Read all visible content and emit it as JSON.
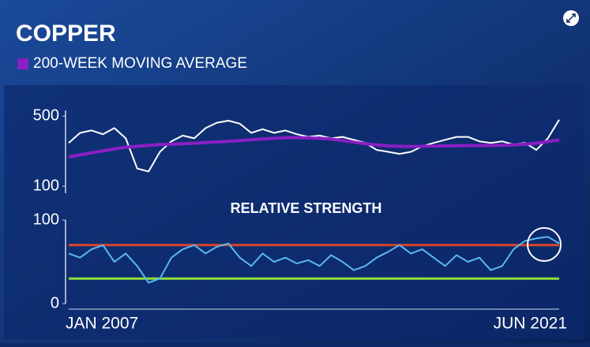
{
  "header": {
    "title": "COPPER",
    "subtitle": "200-WEEK MOVING AVERAGE"
  },
  "chart_data": [
    {
      "type": "line",
      "log_scale": true,
      "ylim": [
        85,
        570
      ],
      "yticks": [
        100,
        500
      ],
      "categories": [
        "JAN 2007",
        null,
        null,
        null,
        null,
        null,
        null,
        null,
        null,
        null,
        null,
        null,
        null,
        null,
        null,
        null,
        null,
        null,
        null,
        null,
        null,
        null,
        null,
        null,
        null,
        null,
        null,
        null,
        null,
        null,
        null,
        null,
        null,
        null,
        null,
        null,
        null,
        null,
        null,
        null,
        null,
        null,
        null,
        "JUN 2021"
      ],
      "series": [
        {
          "color": "#ffffff",
          "values": [
            270,
            340,
            360,
            330,
            380,
            300,
            150,
            140,
            220,
            280,
            320,
            300,
            380,
            430,
            450,
            420,
            340,
            370,
            340,
            360,
            330,
            310,
            320,
            300,
            310,
            290,
            270,
            230,
            220,
            210,
            220,
            250,
            270,
            290,
            310,
            310,
            280,
            270,
            280,
            260,
            270,
            230,
            300,
            460
          ]
        },
        {
          "color": "#8a1fc4",
          "values": [
            195,
            205,
            215,
            225,
            235,
            245,
            250,
            255,
            260,
            262,
            265,
            268,
            272,
            276,
            280,
            285,
            290,
            295,
            300,
            305,
            305,
            303,
            300,
            295,
            285,
            275,
            265,
            258,
            252,
            250,
            249,
            250,
            251,
            252,
            253,
            254,
            254,
            255,
            256,
            258,
            262,
            268,
            278,
            290
          ]
        }
      ]
    },
    {
      "type": "line",
      "annotation": "RELATIVE STRENGTH",
      "ylim": [
        0,
        100
      ],
      "yticks": [
        0,
        100
      ],
      "hlines": [
        {
          "value": 70,
          "color": "#d8452b"
        },
        {
          "value": 30,
          "color": "#8fe03a"
        }
      ],
      "series": [
        {
          "color": "#59b8f2",
          "values": [
            60,
            55,
            65,
            70,
            50,
            60,
            45,
            25,
            30,
            55,
            65,
            70,
            60,
            68,
            72,
            55,
            45,
            60,
            50,
            55,
            48,
            52,
            45,
            58,
            50,
            40,
            45,
            55,
            62,
            70,
            60,
            65,
            55,
            45,
            58,
            50,
            55,
            40,
            45,
            65,
            75,
            78,
            80,
            72
          ]
        }
      ]
    }
  ]
}
